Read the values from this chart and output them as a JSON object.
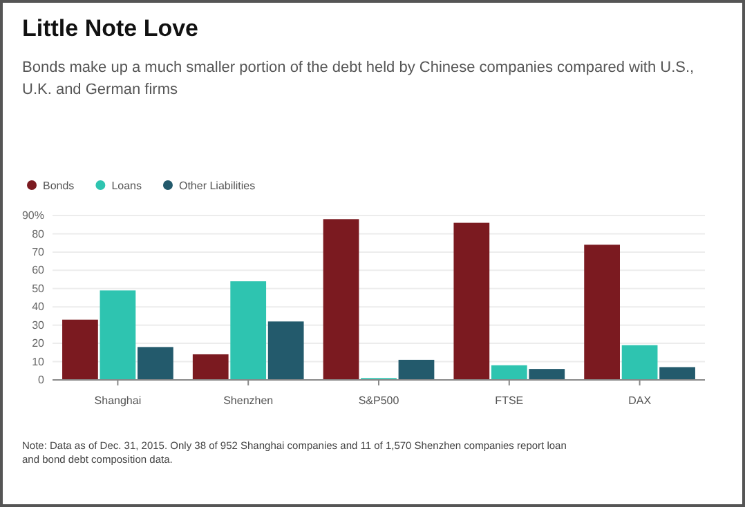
{
  "chart_data": {
    "type": "bar",
    "title": "Little Note Love",
    "subtitle": "Bonds make up a much smaller portion of the debt held by Chinese companies compared with U.S., U.K. and German firms",
    "categories": [
      "Shanghai",
      "Shenzhen",
      "S&P500",
      "FTSE",
      "DAX"
    ],
    "series": [
      {
        "name": "Bonds",
        "color": "#7b1a20",
        "values": [
          33,
          14,
          88,
          86,
          74
        ]
      },
      {
        "name": "Loans",
        "color": "#2ec4b0",
        "values": [
          49,
          54,
          1,
          8,
          19
        ]
      },
      {
        "name": "Other Liabilities",
        "color": "#235a6c",
        "values": [
          18,
          32,
          11,
          6,
          7
        ]
      }
    ],
    "ylim": [
      0,
      90
    ],
    "yticks": [
      0,
      10,
      20,
      30,
      40,
      50,
      60,
      70,
      80,
      {
        "value": 90,
        "label": "90%"
      }
    ],
    "grid": "y",
    "legend": "top left",
    "annotations": [
      "Note: Data as of Dec. 31, 2015. Only 38 of 952 Shanghai companies and 11 of 1,570 Shenzhen companies report loan and bond debt composition data."
    ]
  }
}
